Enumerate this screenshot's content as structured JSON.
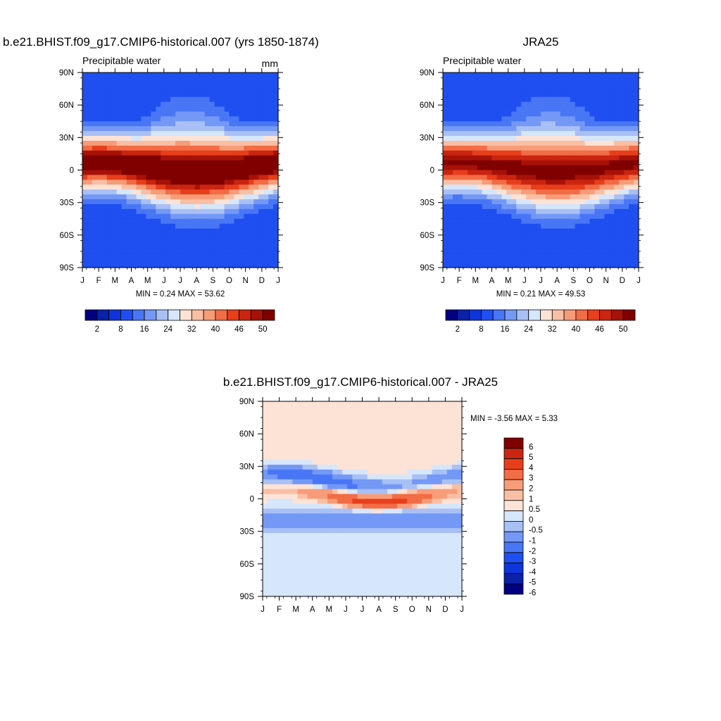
{
  "panels": [
    {
      "id": "model",
      "title": "b.e21.BHIST.f09_g17.CMIP6-historical.007 (yrs 1850-1874)",
      "left_label": "Precipitable water",
      "right_label": "mm",
      "stats": "MIN =   0.24 MAX =  53.62"
    },
    {
      "id": "obs",
      "title": "JRA25",
      "left_label": "Precipitable water",
      "right_label": "",
      "stats": "MIN =   0.21 MAX =  49.53"
    },
    {
      "id": "diff",
      "title": "b.e21.BHIST.f09_g17.CMIP6-historical.007 - JRA25",
      "left_label": "",
      "right_label": "",
      "stats": "MIN =  -3.56 MAX =   5.33"
    }
  ],
  "axes": {
    "x_ticks": [
      "J",
      "F",
      "M",
      "A",
      "M",
      "J",
      "J",
      "A",
      "S",
      "O",
      "N",
      "D",
      "J"
    ],
    "y_ticks": [
      "90N",
      "60N",
      "30N",
      "0",
      "30S",
      "60S",
      "90S"
    ]
  },
  "colorbars": {
    "abs": {
      "colors": [
        "#000080",
        "#0a21a8",
        "#0d35d9",
        "#1f4ff0",
        "#4876f5",
        "#7498f5",
        "#a8c0f5",
        "#d6e6fb",
        "#fde3d6",
        "#f9bfa4",
        "#f79c78",
        "#f26c45",
        "#e73e1b",
        "#c92510",
        "#a61208",
        "#800000"
      ],
      "labels": [
        "2",
        "8",
        "16",
        "24",
        "32",
        "40",
        "46",
        "50"
      ]
    },
    "diff": {
      "colors": [
        "#000080",
        "#0a21a8",
        "#0d35d9",
        "#1f4ff0",
        "#4876f5",
        "#7498f5",
        "#a8c0f5",
        "#d6e6fb",
        "#fde3d6",
        "#f9bfa4",
        "#f79c78",
        "#f26c45",
        "#e73e1b",
        "#c92510",
        "#800000"
      ],
      "labels": [
        "6",
        "5",
        "4",
        "3",
        "2",
        "1",
        "0.5",
        "0",
        "-0.5",
        "-1",
        "-2",
        "-3",
        "-4",
        "-5",
        "-6"
      ]
    }
  },
  "chart_data": [
    {
      "type": "heatmap",
      "title": "b.e21.BHIST.f09_g17.CMIP6-historical.007 (yrs 1850-1874)",
      "subtitle": "Precipitable water",
      "units": "mm",
      "x": [
        "J",
        "F",
        "M",
        "A",
        "M",
        "J",
        "J",
        "A",
        "S",
        "O",
        "N",
        "D",
        "J"
      ],
      "y": [
        "90N",
        "60N",
        "30N",
        "0",
        "30S",
        "60S",
        "90S"
      ],
      "min": 0.24,
      "max": 53.62,
      "levels": [
        2,
        8,
        16,
        24,
        32,
        40,
        46,
        50
      ]
    },
    {
      "type": "heatmap",
      "title": "JRA25",
      "subtitle": "Precipitable water",
      "x": [
        "J",
        "F",
        "M",
        "A",
        "M",
        "J",
        "J",
        "A",
        "S",
        "O",
        "N",
        "D",
        "J"
      ],
      "y": [
        "90N",
        "60N",
        "30N",
        "0",
        "30S",
        "60S",
        "90S"
      ],
      "min": 0.21,
      "max": 49.53,
      "levels": [
        2,
        8,
        16,
        24,
        32,
        40,
        46,
        50
      ]
    },
    {
      "type": "heatmap",
      "title": "b.e21.BHIST.f09_g17.CMIP6-historical.007 - JRA25",
      "x": [
        "J",
        "F",
        "M",
        "A",
        "M",
        "J",
        "J",
        "A",
        "S",
        "O",
        "N",
        "D",
        "J"
      ],
      "y": [
        "90N",
        "60N",
        "30N",
        "0",
        "30S",
        "60S",
        "90S"
      ],
      "min": -3.56,
      "max": 5.33,
      "levels": [
        -6,
        -5,
        -4,
        -3,
        -2,
        -1,
        -0.5,
        0,
        0.5,
        1,
        2,
        3,
        4,
        5,
        6
      ]
    }
  ]
}
